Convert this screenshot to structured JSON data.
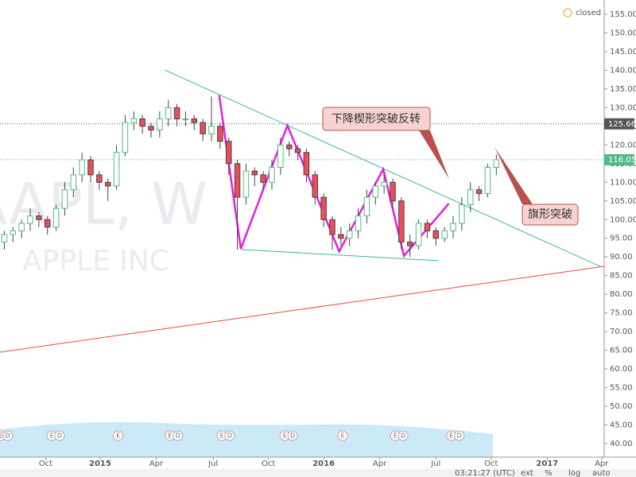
{
  "chart_data": {
    "type": "candlestick",
    "watermark": {
      "symbol": "AAPL, W",
      "name": "APPLE INC"
    },
    "status": "closed",
    "toolbar": {
      "time": "03:21:27 (UTC)",
      "items": [
        "ext",
        "%",
        "log",
        "auto"
      ]
    },
    "up_color": "#53b987",
    "down_color": "#eb4d5c",
    "open": [
      94,
      96,
      97,
      99,
      101,
      100,
      98,
      103,
      108,
      112,
      116,
      112,
      110,
      109,
      118,
      126,
      127,
      125,
      124,
      127,
      130,
      127,
      127,
      126,
      123,
      125,
      121,
      115,
      106,
      113,
      112,
      110,
      114,
      120,
      119,
      118,
      112,
      106,
      100,
      96,
      95,
      97,
      101,
      106,
      109,
      110,
      105,
      94,
      93,
      99,
      97,
      95,
      97,
      99,
      104,
      108,
      107,
      114
    ],
    "high": [
      97,
      98,
      100,
      103,
      102,
      101,
      104,
      110,
      114,
      118,
      117,
      113,
      111,
      120,
      128,
      129,
      128,
      126,
      129,
      132,
      131,
      129,
      128,
      127,
      133,
      126,
      122,
      116,
      115,
      114,
      113,
      116,
      122,
      121,
      120,
      119,
      113,
      107,
      101,
      98,
      99,
      103,
      108,
      110,
      112,
      111,
      106,
      96,
      100,
      100,
      98,
      98,
      101,
      106,
      110,
      109,
      115,
      117.5
    ],
    "low": [
      92,
      94,
      95,
      97,
      98,
      96,
      97,
      101,
      106,
      110,
      110,
      108,
      105,
      108,
      117,
      124,
      123,
      122,
      122,
      125,
      125,
      125,
      124,
      121,
      121,
      119,
      112,
      92,
      104,
      109,
      108,
      108,
      112,
      117,
      116,
      110,
      104,
      98,
      92,
      93,
      93,
      95,
      99,
      104,
      107,
      103,
      92,
      90,
      92,
      95,
      93,
      94,
      95,
      97,
      102,
      105,
      106,
      112
    ],
    "close": [
      96,
      97,
      99,
      101,
      100,
      98,
      103,
      108,
      112,
      116,
      112,
      110,
      109,
      118,
      126,
      127,
      125,
      124,
      127,
      130,
      127,
      127,
      126,
      123,
      125,
      121,
      115,
      106,
      113,
      112,
      110,
      114,
      120,
      119,
      118,
      112,
      106,
      100,
      96,
      95,
      97,
      101,
      106,
      109,
      110,
      105,
      94,
      93,
      99,
      97,
      95,
      97,
      99,
      104,
      108,
      107,
      114,
      116.05
    ],
    "xlim": [
      -0.5,
      69.5
    ],
    "xticks": [
      {
        "value": 4.8,
        "label": "Oct"
      },
      {
        "value": 11.1,
        "label": "2015"
      },
      {
        "value": 17.6,
        "label": "Apr"
      },
      {
        "value": 24.2,
        "label": "Jul"
      },
      {
        "value": 30.6,
        "label": "Oct"
      },
      {
        "value": 37,
        "label": "2016"
      },
      {
        "value": 43.5,
        "label": "Apr"
      },
      {
        "value": 50,
        "label": "Jul"
      },
      {
        "value": 56.4,
        "label": "Oct"
      },
      {
        "value": 62.9,
        "label": "2017"
      },
      {
        "value": 69.2,
        "label": "Apr"
      }
    ],
    "ylim": [
      40,
      155
    ],
    "yticks": [
      {
        "value": 40,
        "label": "40.00"
      },
      {
        "value": 45,
        "label": "45.00"
      },
      {
        "value": 50,
        "label": "50.00"
      },
      {
        "value": 55,
        "label": "55.00"
      },
      {
        "value": 60,
        "label": "60.00"
      },
      {
        "value": 65,
        "label": "65.00"
      },
      {
        "value": 70,
        "label": "70.00"
      },
      {
        "value": 75,
        "label": "75.00"
      },
      {
        "value": 80,
        "label": "80.00"
      },
      {
        "value": 85,
        "label": "85.00"
      },
      {
        "value": 90,
        "label": "90.00"
      },
      {
        "value": 95,
        "label": "95.00"
      },
      {
        "value": 100,
        "label": "100.00"
      },
      {
        "value": 105,
        "label": "105.00"
      },
      {
        "value": 110,
        "label": "110.00"
      },
      {
        "value": 115,
        "label": "115.00"
      },
      {
        "value": 120,
        "label": "120.00"
      },
      {
        "value": 125,
        "label": "125.00"
      },
      {
        "value": 130,
        "label": "130.00"
      },
      {
        "value": 135,
        "label": "135.00"
      },
      {
        "value": 140,
        "label": "140.00"
      },
      {
        "value": 145,
        "label": "145.00"
      },
      {
        "value": 150,
        "label": "150.00"
      },
      {
        "value": 155,
        "label": "155.00"
      }
    ],
    "grid": false,
    "price_lines": [
      {
        "value": 125.66,
        "label": "125.66",
        "color": "#555555"
      },
      {
        "value": 116.05,
        "label": "116.05",
        "color": "#53b987"
      }
    ],
    "lines": [
      {
        "color": "#3fb59a",
        "x": [
          18.57,
          69.0
        ],
        "y": [
          140.1,
          87.5
        ]
      },
      {
        "color": "#3fb59a",
        "x": [
          27.4,
          50.3
        ],
        "y": [
          92.0,
          89.0
        ]
      },
      {
        "color": "#e8473c",
        "x": [
          -0.5,
          69.5
        ],
        "y": [
          64.5,
          87.5
        ]
      },
      {
        "color": "#e41fe0",
        "x": [
          24.9,
          27.4,
          32.8,
          38.8,
          43.9,
          46.3,
          51.5
        ],
        "y": [
          133.3,
          92.2,
          125.2,
          91.5,
          113.5,
          90.3,
          104.3
        ]
      }
    ],
    "events": [
      {
        "x": -0.4,
        "label": "E"
      },
      {
        "x": 0.4,
        "label": "D"
      },
      {
        "x": 5.5,
        "label": "E"
      },
      {
        "x": 6.4,
        "label": "D"
      },
      {
        "x": 13.2,
        "label": "E"
      },
      {
        "x": 19.2,
        "label": "E"
      },
      {
        "x": 20.1,
        "label": "D"
      },
      {
        "x": 25.2,
        "label": "E"
      },
      {
        "x": 26.1,
        "label": "D"
      },
      {
        "x": 32.5,
        "label": "E"
      },
      {
        "x": 33.4,
        "label": "D"
      },
      {
        "x": 39.2,
        "label": "E"
      },
      {
        "x": 45.3,
        "label": "E"
      },
      {
        "x": 46.2,
        "label": "D"
      },
      {
        "x": 51.8,
        "label": "E"
      },
      {
        "x": 52.7,
        "label": "D"
      }
    ],
    "annotations": [
      {
        "text": "下降楔形突破反转"
      },
      {
        "text": "旗形突破"
      }
    ]
  }
}
